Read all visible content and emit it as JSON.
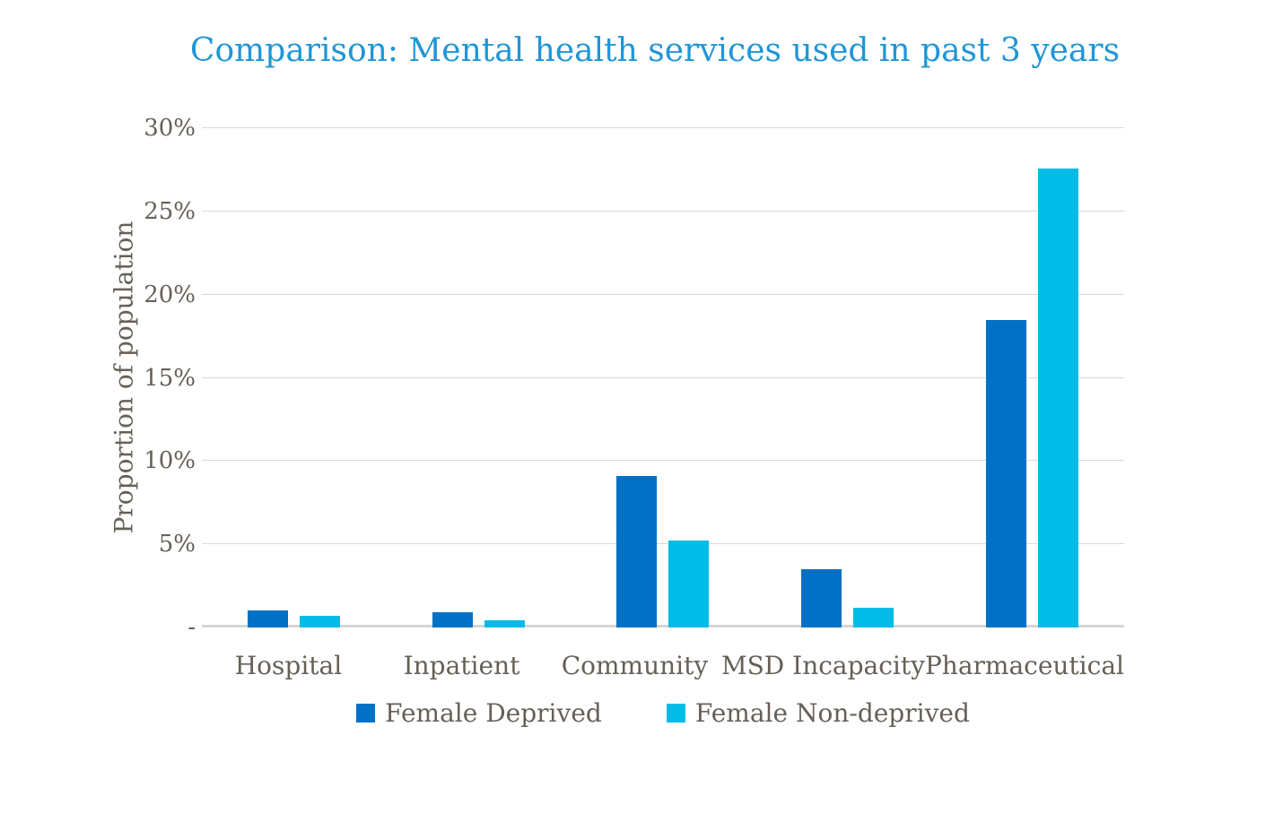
{
  "chart_data": {
    "type": "bar",
    "title": "Comparison: Mental health services used in past 3 years",
    "ylabel": "Proportion of population",
    "xlabel": "",
    "categories": [
      "Hospital",
      "Inpatient",
      "Community",
      "MSD Incapacity",
      "Pharmaceutical"
    ],
    "series": [
      {
        "name": "Female Deprived",
        "color": "#0071C5",
        "values": [
          1.0,
          0.9,
          9.1,
          3.5,
          18.5
        ]
      },
      {
        "name": "Female Non-deprived",
        "color": "#00BCE6",
        "values": [
          0.7,
          0.45,
          5.2,
          1.2,
          27.6
        ]
      }
    ],
    "ylim": [
      0,
      30
    ],
    "yticks": [
      {
        "value": 30,
        "label": "30%"
      },
      {
        "value": 25,
        "label": "25%"
      },
      {
        "value": 20,
        "label": "20%"
      },
      {
        "value": 15,
        "label": "15%"
      },
      {
        "value": 10,
        "label": "10%"
      },
      {
        "value": 5,
        "label": "5%"
      },
      {
        "value": 0,
        "label": "-"
      }
    ],
    "grid": true,
    "legend_position": "bottom"
  },
  "colors": {
    "title_text": "#2196D6",
    "axis_text": "#666058",
    "gridline": "#D9D9D9",
    "baseline": "#D6D6D6",
    "background": "#FFFFFF"
  }
}
